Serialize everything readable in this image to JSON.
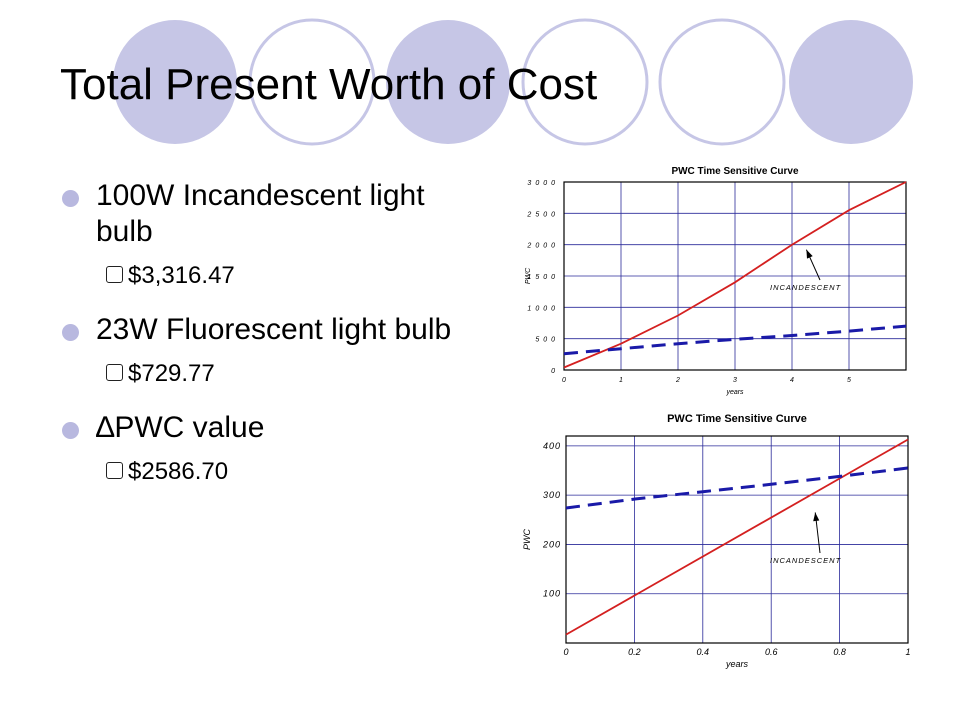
{
  "slide": {
    "title": "Total Present Worth of Cost",
    "bullets": [
      {
        "text": "100W Incandescent light bulb",
        "sub": "$3,316.47"
      },
      {
        "text": "23W Fluorescent light bulb",
        "sub": "$729.77"
      },
      {
        "text": "∆PWC value",
        "sub": "$2586.70"
      }
    ],
    "sub_bullet_icon": "hollow-square-icon",
    "colors": {
      "accent_circle": "#c6c6e6",
      "bullet": "#b8b8df"
    }
  },
  "chart_data": [
    {
      "type": "line",
      "title": "PWC Time Sensitive Curve",
      "xlabel": "years",
      "ylabel": "PWC",
      "xlim": [
        0,
        6
      ],
      "ylim": [
        0,
        3000
      ],
      "xticks": [
        "0",
        "1",
        "2",
        "3",
        "4",
        "5"
      ],
      "yticks": [
        "0",
        "500",
        "1000",
        "1500",
        "2000",
        "2500",
        "3000"
      ],
      "grid": true,
      "annotation": "INCANDESCENT",
      "series": [
        {
          "style": "solid",
          "color": "#d42020",
          "x": [
            0,
            1,
            2,
            3,
            4,
            5,
            6
          ],
          "y": [
            40,
            420,
            870,
            1400,
            2000,
            2550,
            3000
          ]
        },
        {
          "style": "dashed",
          "color": "#1a1aa8",
          "x": [
            0,
            1,
            2,
            3,
            4,
            5,
            6
          ],
          "y": [
            260,
            340,
            420,
            490,
            550,
            620,
            700
          ]
        }
      ]
    },
    {
      "type": "line",
      "title": "PWC Time Sensitive Curve",
      "xlabel": "years",
      "ylabel": "PWC",
      "xlim": [
        0,
        1
      ],
      "ylim": [
        0,
        420
      ],
      "xticks": [
        "0",
        "0.2",
        "0.4",
        "0.6",
        "0.8",
        "1"
      ],
      "yticks": [
        "100",
        "200",
        "300",
        "400"
      ],
      "grid": true,
      "annotation": "INCANDESCENT",
      "series": [
        {
          "style": "solid",
          "color": "#d42020",
          "x": [
            0,
            1
          ],
          "y": [
            17,
            413
          ]
        },
        {
          "style": "dashed",
          "color": "#1a1aa8",
          "x": [
            0,
            0.2,
            0.4,
            0.6,
            0.8,
            1
          ],
          "y": [
            274,
            292,
            307,
            322,
            338,
            355
          ]
        }
      ]
    }
  ]
}
